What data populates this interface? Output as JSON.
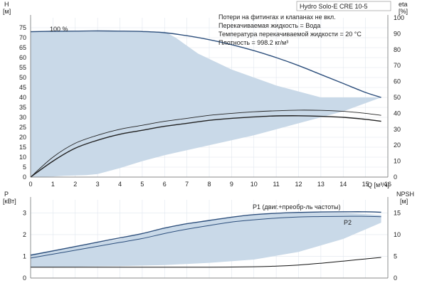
{
  "chart_data": [
    {
      "type": "line",
      "panel": "top",
      "title": "Hydro Solo-E CRE 10-5",
      "xlabel": "Q [м³/ч]",
      "ylabel_left": [
        "H",
        "[м]"
      ],
      "ylabel_right": [
        "eta",
        "[%]"
      ],
      "xlim": [
        0,
        16
      ],
      "ylim": [
        0,
        80
      ],
      "ylim_right": [
        0,
        100
      ],
      "x_ticks": [
        0,
        1,
        2,
        3,
        4,
        5,
        6,
        7,
        8,
        9,
        10,
        11,
        12,
        13,
        14,
        15,
        16
      ],
      "y_ticks": [
        0,
        5,
        10,
        15,
        20,
        25,
        30,
        35,
        40,
        45,
        50,
        55,
        60,
        65,
        70,
        75
      ],
      "y_ticks_right": [
        0,
        10,
        20,
        30,
        40,
        50,
        60,
        70,
        80,
        90,
        100
      ],
      "grid": true,
      "annotations": [
        "Потери на фитингах и клапанах не вкл.",
        "Перекачиваемая жидкость = Вода",
        "Температура перекачиваемой жидкости = 20 °C",
        "Плотность = 998.2 кг/м³"
      ],
      "speed_label": "100 %",
      "operating_region": {
        "upper": [
          [
            0,
            73
          ],
          [
            6,
            73
          ],
          [
            6.5,
            70
          ],
          [
            7.5,
            62
          ],
          [
            9,
            54
          ],
          [
            11,
            46
          ],
          [
            13,
            40
          ],
          [
            15.7,
            40
          ]
        ],
        "lower": [
          [
            15.7,
            40
          ],
          [
            14,
            33
          ],
          [
            12,
            27
          ],
          [
            10,
            21
          ],
          [
            8,
            16
          ],
          [
            6,
            11
          ],
          [
            5,
            8
          ],
          [
            4,
            4.5
          ],
          [
            3,
            1.5
          ],
          [
            2.5,
            1
          ],
          [
            1.5,
            0.6
          ],
          [
            1,
            0.3
          ],
          [
            0,
            0
          ]
        ]
      },
      "series": [
        {
          "role": "head",
          "x": [
            0,
            1,
            2,
            3,
            4,
            5,
            6,
            7,
            8,
            9,
            10,
            11,
            12,
            13,
            14,
            15,
            15.7
          ],
          "values": [
            73,
            73.2,
            73.3,
            73.4,
            73.3,
            73.1,
            72.5,
            71,
            69,
            66.5,
            63.5,
            60,
            56,
            51.5,
            47,
            42.5,
            40
          ],
          "axis": "left",
          "color": "#2d4f7c"
        },
        {
          "role": "eta-upper",
          "x": [
            0,
            1,
            2,
            3,
            4,
            5,
            6,
            7,
            8,
            9,
            10,
            11,
            12,
            13,
            14,
            15,
            15.7
          ],
          "values": [
            0,
            10,
            17,
            21,
            24,
            26,
            28,
            29.5,
            31,
            32,
            32.8,
            33.3,
            33.6,
            33.5,
            33,
            32,
            31
          ],
          "axis": "left",
          "color": "#222222"
        },
        {
          "role": "eta-lower",
          "x": [
            0,
            1,
            2,
            3,
            4,
            5,
            6,
            7,
            8,
            9,
            10,
            11,
            12,
            13,
            14,
            15,
            15.7
          ],
          "values": [
            0,
            8,
            14.5,
            18.5,
            21.5,
            23.5,
            25.5,
            27,
            28.5,
            29.5,
            30.2,
            30.7,
            30.8,
            30.5,
            30,
            29,
            28
          ],
          "axis": "left",
          "color": "#222222"
        }
      ]
    },
    {
      "type": "line",
      "panel": "bottom",
      "ylabel_left": [
        "P",
        "[кВт]"
      ],
      "ylabel_right": [
        "NPSH",
        "[м]"
      ],
      "xlim": [
        0,
        16
      ],
      "ylim": [
        0,
        3.6
      ],
      "ylim_right": [
        0,
        18
      ],
      "y_ticks": [
        0,
        1,
        2,
        3
      ],
      "y_ticks_right": [
        0,
        5,
        10,
        15
      ],
      "grid": true,
      "operating_region": {
        "upper": [
          [
            0,
            1.1
          ],
          [
            2,
            1.45
          ],
          [
            4,
            1.8
          ],
          [
            6,
            2.3
          ],
          [
            8,
            2.65
          ],
          [
            10,
            2.9
          ],
          [
            12,
            3
          ],
          [
            14,
            3
          ],
          [
            15.7,
            2.9
          ]
        ],
        "lower": [
          [
            15.7,
            2.55
          ],
          [
            14,
            1.8
          ],
          [
            12,
            1.2
          ],
          [
            10,
            0.85
          ],
          [
            8,
            0.7
          ],
          [
            6,
            0.6
          ],
          [
            4,
            0.55
          ],
          [
            2,
            0.52
          ],
          [
            0,
            0.5
          ]
        ]
      },
      "series": [
        {
          "name": "P1 (двиг.+преобр-ль частоты)",
          "x": [
            0,
            1,
            2,
            3,
            4,
            5,
            6,
            7,
            8,
            9,
            10,
            11,
            12,
            13,
            14,
            15,
            15.7
          ],
          "values": [
            1.05,
            1.25,
            1.45,
            1.65,
            1.85,
            2.05,
            2.3,
            2.5,
            2.65,
            2.8,
            2.92,
            2.98,
            3.02,
            3.04,
            3.05,
            3.05,
            3.03
          ],
          "axis": "left",
          "color": "#2d4f7c"
        },
        {
          "name": "P2",
          "x": [
            0,
            1,
            2,
            3,
            4,
            5,
            6,
            7,
            8,
            9,
            10,
            11,
            12,
            13,
            14,
            15,
            15.7
          ],
          "values": [
            0.92,
            1.1,
            1.28,
            1.46,
            1.64,
            1.82,
            2.05,
            2.25,
            2.42,
            2.58,
            2.68,
            2.76,
            2.81,
            2.83,
            2.84,
            2.84,
            2.82
          ],
          "axis": "left",
          "color": "#2d4f7c"
        },
        {
          "role": "npsh",
          "x": [
            0,
            2,
            4,
            6,
            8,
            10,
            11,
            12,
            13,
            14,
            15,
            15.7
          ],
          "values": [
            0.5,
            0.5,
            0.5,
            0.5,
            0.5,
            0.52,
            0.55,
            0.6,
            0.68,
            0.78,
            0.88,
            0.95
          ],
          "axis": "left",
          "color": "#111111"
        }
      ]
    }
  ]
}
